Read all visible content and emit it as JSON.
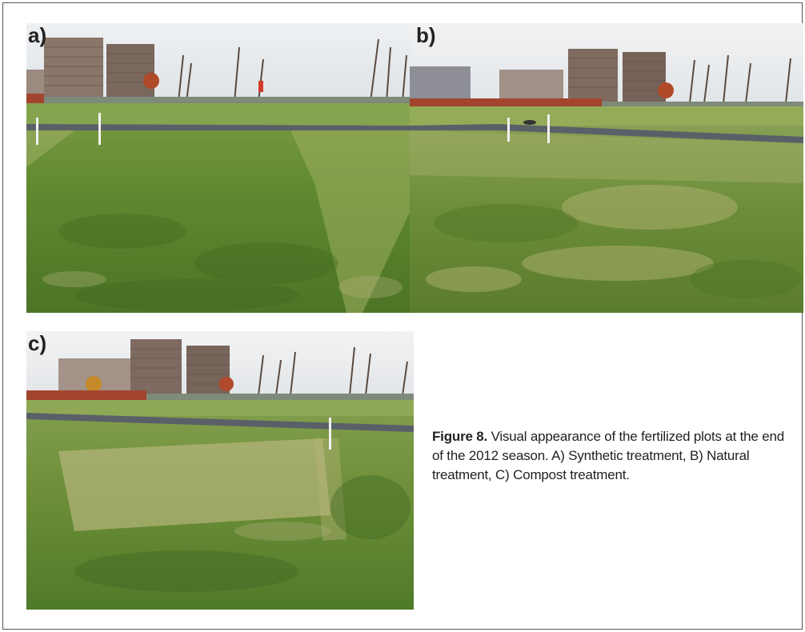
{
  "panels": [
    {
      "label": "a)",
      "description": "Synthetic treatment plot"
    },
    {
      "label": "b)",
      "description": "Natural treatment plot"
    },
    {
      "label": "c)",
      "description": "Compost treatment plot"
    }
  ],
  "caption": {
    "figure_number": "Figure 8.",
    "text": " Visual appearance of the fertilized plots at the end of the 2012 season. A) Synthetic treatment, B) Natural treatment, C) Compost treatment."
  },
  "colors": {
    "sky": "#dfe3e8",
    "grass_dark": "#4f7a2a",
    "grass_light": "#8fae4f",
    "grass_straw": "#b9b57a",
    "path": "#5a6068",
    "building": "#7e6a60",
    "hedge": "#a3452e"
  }
}
